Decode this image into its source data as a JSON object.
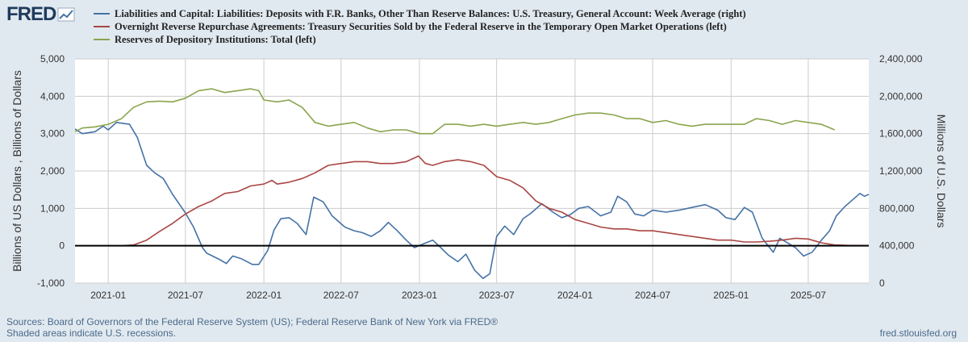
{
  "brand": {
    "name": "FRED"
  },
  "chart_data": {
    "type": "line",
    "title": "",
    "series": [
      {
        "name": "Liabilities and Capital: Liabilities: Deposits with F.R. Banks, Other Than Reserve Balances: U.S. Treasury, General Account: Week Average (right)",
        "axis": "right",
        "color": "#4572a7",
        "points": [
          [
            "2020-10-15",
            1650000
          ],
          [
            "2020-11-01",
            1600000
          ],
          [
            "2020-12-01",
            1620000
          ],
          [
            "2020-12-20",
            1680000
          ],
          [
            "2021-01-01",
            1640000
          ],
          [
            "2021-01-20",
            1720000
          ],
          [
            "2021-02-20",
            1700000
          ],
          [
            "2021-03-10",
            1560000
          ],
          [
            "2021-04-01",
            1260000
          ],
          [
            "2021-04-20",
            1180000
          ],
          [
            "2021-05-10",
            1120000
          ],
          [
            "2021-06-01",
            950000
          ],
          [
            "2021-07-01",
            750000
          ],
          [
            "2021-07-20",
            600000
          ],
          [
            "2021-08-10",
            380000
          ],
          [
            "2021-08-20",
            320000
          ],
          [
            "2021-09-20",
            250000
          ],
          [
            "2021-10-05",
            210000
          ],
          [
            "2021-10-20",
            290000
          ],
          [
            "2021-11-10",
            260000
          ],
          [
            "2021-12-05",
            200000
          ],
          [
            "2021-12-20",
            200000
          ],
          [
            "2022-01-10",
            350000
          ],
          [
            "2022-01-25",
            570000
          ],
          [
            "2022-02-10",
            690000
          ],
          [
            "2022-03-01",
            700000
          ],
          [
            "2022-03-20",
            640000
          ],
          [
            "2022-04-10",
            520000
          ],
          [
            "2022-04-28",
            920000
          ],
          [
            "2022-05-20",
            870000
          ],
          [
            "2022-06-10",
            720000
          ],
          [
            "2022-07-10",
            600000
          ],
          [
            "2022-08-01",
            560000
          ],
          [
            "2022-08-20",
            540000
          ],
          [
            "2022-09-10",
            500000
          ],
          [
            "2022-10-01",
            560000
          ],
          [
            "2022-10-20",
            650000
          ],
          [
            "2022-11-10",
            560000
          ],
          [
            "2022-12-01",
            460000
          ],
          [
            "2022-12-20",
            380000
          ],
          [
            "2023-01-10",
            420000
          ],
          [
            "2023-02-01",
            460000
          ],
          [
            "2023-02-20",
            380000
          ],
          [
            "2023-03-10",
            300000
          ],
          [
            "2023-04-01",
            230000
          ],
          [
            "2023-04-20",
            310000
          ],
          [
            "2023-05-10",
            140000
          ],
          [
            "2023-05-30",
            50000
          ],
          [
            "2023-06-15",
            100000
          ],
          [
            "2023-07-01",
            500000
          ],
          [
            "2023-07-20",
            610000
          ],
          [
            "2023-08-10",
            520000
          ],
          [
            "2023-09-01",
            690000
          ],
          [
            "2023-09-20",
            750000
          ],
          [
            "2023-10-15",
            850000
          ],
          [
            "2023-11-10",
            760000
          ],
          [
            "2023-12-01",
            700000
          ],
          [
            "2023-12-20",
            730000
          ],
          [
            "2024-01-10",
            800000
          ],
          [
            "2024-02-01",
            820000
          ],
          [
            "2024-03-01",
            720000
          ],
          [
            "2024-03-25",
            760000
          ],
          [
            "2024-04-10",
            930000
          ],
          [
            "2024-05-01",
            870000
          ],
          [
            "2024-05-20",
            740000
          ],
          [
            "2024-06-10",
            720000
          ],
          [
            "2024-07-01",
            780000
          ],
          [
            "2024-08-01",
            760000
          ],
          [
            "2024-09-01",
            780000
          ],
          [
            "2024-10-01",
            810000
          ],
          [
            "2024-11-01",
            840000
          ],
          [
            "2024-12-01",
            780000
          ],
          [
            "2024-12-20",
            700000
          ],
          [
            "2025-01-10",
            680000
          ],
          [
            "2025-02-01",
            810000
          ],
          [
            "2025-02-20",
            760000
          ],
          [
            "2025-03-15",
            480000
          ],
          [
            "2025-04-10",
            330000
          ],
          [
            "2025-04-25",
            480000
          ],
          [
            "2025-05-10",
            440000
          ],
          [
            "2025-06-01",
            380000
          ],
          [
            "2025-06-20",
            290000
          ],
          [
            "2025-07-10",
            330000
          ],
          [
            "2025-08-01",
            460000
          ],
          [
            "2025-08-20",
            560000
          ],
          [
            "2025-09-05",
            720000
          ],
          [
            "2025-09-25",
            820000
          ],
          [
            "2025-10-15",
            900000
          ],
          [
            "2025-10-30",
            960000
          ],
          [
            "2025-11-10",
            930000
          ],
          [
            "2025-11-20",
            950000
          ]
        ]
      },
      {
        "name": "Overnight Reverse Repurchase Agreements: Treasury Securities Sold by the Federal Reserve in the Temporary Open Market Operations (left)",
        "axis": "left",
        "color": "#aa4643",
        "points": [
          [
            "2020-10-15",
            0
          ],
          [
            "2021-02-01",
            0
          ],
          [
            "2021-03-01",
            20
          ],
          [
            "2021-04-01",
            150
          ],
          [
            "2021-05-01",
            380
          ],
          [
            "2021-06-01",
            600
          ],
          [
            "2021-07-01",
            850
          ],
          [
            "2021-08-01",
            1050
          ],
          [
            "2021-09-01",
            1200
          ],
          [
            "2021-10-01",
            1400
          ],
          [
            "2021-11-01",
            1450
          ],
          [
            "2021-12-01",
            1600
          ],
          [
            "2022-01-01",
            1650
          ],
          [
            "2022-01-20",
            1750
          ],
          [
            "2022-02-01",
            1650
          ],
          [
            "2022-03-01",
            1700
          ],
          [
            "2022-04-01",
            1800
          ],
          [
            "2022-05-01",
            1950
          ],
          [
            "2022-06-01",
            2150
          ],
          [
            "2022-07-01",
            2200
          ],
          [
            "2022-08-01",
            2250
          ],
          [
            "2022-09-01",
            2250
          ],
          [
            "2022-10-01",
            2200
          ],
          [
            "2022-11-01",
            2200
          ],
          [
            "2022-12-01",
            2250
          ],
          [
            "2022-12-30",
            2400
          ],
          [
            "2023-01-15",
            2200
          ],
          [
            "2023-02-01",
            2150
          ],
          [
            "2023-03-01",
            2250
          ],
          [
            "2023-04-01",
            2300
          ],
          [
            "2023-05-01",
            2250
          ],
          [
            "2023-06-01",
            2150
          ],
          [
            "2023-07-01",
            1850
          ],
          [
            "2023-08-01",
            1750
          ],
          [
            "2023-09-01",
            1550
          ],
          [
            "2023-10-01",
            1200
          ],
          [
            "2023-11-01",
            1000
          ],
          [
            "2023-12-01",
            900
          ],
          [
            "2024-01-01",
            700
          ],
          [
            "2024-02-01",
            600
          ],
          [
            "2024-03-01",
            500
          ],
          [
            "2024-04-01",
            450
          ],
          [
            "2024-05-01",
            450
          ],
          [
            "2024-06-01",
            400
          ],
          [
            "2024-07-01",
            400
          ],
          [
            "2024-08-01",
            350
          ],
          [
            "2024-09-01",
            300
          ],
          [
            "2024-10-01",
            250
          ],
          [
            "2024-11-01",
            200
          ],
          [
            "2024-12-01",
            150
          ],
          [
            "2025-01-01",
            150
          ],
          [
            "2025-02-01",
            100
          ],
          [
            "2025-03-01",
            100
          ],
          [
            "2025-04-01",
            120
          ],
          [
            "2025-05-01",
            150
          ],
          [
            "2025-06-01",
            200
          ],
          [
            "2025-07-01",
            180
          ],
          [
            "2025-08-01",
            80
          ],
          [
            "2025-09-01",
            20
          ],
          [
            "2025-10-01",
            10
          ],
          [
            "2025-11-20",
            5
          ]
        ]
      },
      {
        "name": "Reserves of Depository Institutions: Total (left)",
        "axis": "left",
        "color": "#89a54e",
        "points": [
          [
            "2020-10-15",
            3050
          ],
          [
            "2020-11-01",
            3150
          ],
          [
            "2020-12-01",
            3180
          ],
          [
            "2021-01-01",
            3250
          ],
          [
            "2021-02-01",
            3400
          ],
          [
            "2021-03-01",
            3700
          ],
          [
            "2021-04-01",
            3850
          ],
          [
            "2021-05-01",
            3870
          ],
          [
            "2021-06-01",
            3850
          ],
          [
            "2021-07-01",
            3950
          ],
          [
            "2021-08-01",
            4150
          ],
          [
            "2021-09-01",
            4200
          ],
          [
            "2021-10-01",
            4100
          ],
          [
            "2021-11-01",
            4150
          ],
          [
            "2021-12-01",
            4200
          ],
          [
            "2021-12-20",
            4150
          ],
          [
            "2022-01-01",
            3900
          ],
          [
            "2022-02-01",
            3850
          ],
          [
            "2022-03-01",
            3900
          ],
          [
            "2022-04-01",
            3700
          ],
          [
            "2022-05-01",
            3300
          ],
          [
            "2022-06-01",
            3200
          ],
          [
            "2022-07-01",
            3250
          ],
          [
            "2022-08-01",
            3300
          ],
          [
            "2022-09-01",
            3150
          ],
          [
            "2022-10-01",
            3050
          ],
          [
            "2022-11-01",
            3100
          ],
          [
            "2022-12-01",
            3100
          ],
          [
            "2023-01-01",
            3000
          ],
          [
            "2023-02-01",
            3000
          ],
          [
            "2023-03-01",
            3250
          ],
          [
            "2023-04-01",
            3250
          ],
          [
            "2023-05-01",
            3200
          ],
          [
            "2023-06-01",
            3250
          ],
          [
            "2023-07-01",
            3200
          ],
          [
            "2023-08-01",
            3250
          ],
          [
            "2023-09-01",
            3300
          ],
          [
            "2023-10-01",
            3250
          ],
          [
            "2023-11-01",
            3300
          ],
          [
            "2023-12-01",
            3400
          ],
          [
            "2024-01-01",
            3500
          ],
          [
            "2024-02-01",
            3550
          ],
          [
            "2024-03-01",
            3550
          ],
          [
            "2024-04-01",
            3500
          ],
          [
            "2024-05-01",
            3400
          ],
          [
            "2024-06-01",
            3400
          ],
          [
            "2024-07-01",
            3300
          ],
          [
            "2024-08-01",
            3350
          ],
          [
            "2024-09-01",
            3250
          ],
          [
            "2024-10-01",
            3200
          ],
          [
            "2024-11-01",
            3250
          ],
          [
            "2024-12-01",
            3250
          ],
          [
            "2025-01-01",
            3250
          ],
          [
            "2025-02-01",
            3250
          ],
          [
            "2025-03-01",
            3400
          ],
          [
            "2025-04-01",
            3350
          ],
          [
            "2025-05-01",
            3250
          ],
          [
            "2025-06-01",
            3350
          ],
          [
            "2025-07-01",
            3300
          ],
          [
            "2025-08-01",
            3250
          ],
          [
            "2025-09-01",
            3100
          ]
        ]
      }
    ],
    "x_ticks": [
      "2021-01",
      "2021-07",
      "2022-01",
      "2022-07",
      "2023-01",
      "2023-07",
      "2024-01",
      "2024-07",
      "2025-01",
      "2025-07"
    ],
    "xlim": [
      "2020-10-15",
      "2025-11-20"
    ],
    "y_left": {
      "label": "Billions of US Dollars , Billions of Dollars",
      "ylim": [
        -1000,
        5000
      ],
      "ticks": [
        -1000,
        0,
        1000,
        2000,
        3000,
        4000,
        5000
      ],
      "tick_labels": [
        "-1,000",
        "0",
        "1,000",
        "2,000",
        "3,000",
        "4,000",
        "5,000"
      ]
    },
    "y_right": {
      "label": "Millions of U.S. Dollars",
      "ylim": [
        0,
        2400000
      ],
      "ticks": [
        0,
        400000,
        800000,
        1200000,
        1600000,
        2000000,
        2400000
      ],
      "tick_labels": [
        "0",
        "400,000",
        "800,000",
        "1,200,000",
        "1,600,000",
        "2,000,000",
        "2,400,000"
      ]
    },
    "grid": true,
    "zero_line": true,
    "legend_placement": "top-left"
  },
  "footer": {
    "source": "Sources: Board of Governors of the Federal Reserve System (US); Federal Reserve Bank of New York via FRED®",
    "note": "Shaded areas indicate U.S. recessions.",
    "site": "fred.stlouisfed.org"
  },
  "colors": {
    "background": "#e1e9f0",
    "plot_bg": "#ffffff",
    "grid": "#cccccc",
    "brand": "#1f3b5c",
    "footer": "#4a6a8a"
  }
}
